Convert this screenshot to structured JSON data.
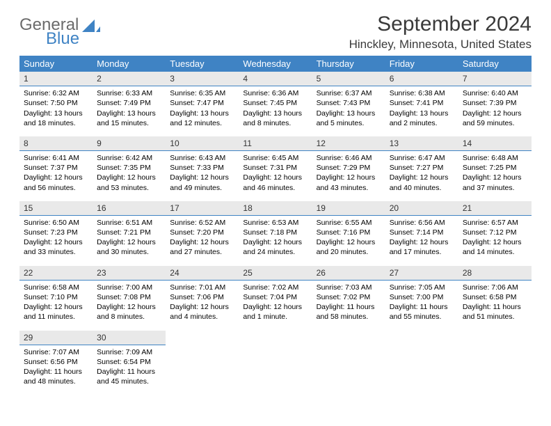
{
  "brand": {
    "word1": "General",
    "word2": "Blue"
  },
  "title": "September 2024",
  "location": "Hinckley, Minnesota, United States",
  "colors": {
    "header_bg": "#3f83c4",
    "header_fg": "#ffffff",
    "daynum_bg": "#e9e9e9",
    "daynum_border": "#3f83c4",
    "page_bg": "#ffffff",
    "text": "#000000",
    "logo_gray": "#6b6b6b",
    "logo_blue": "#3f83c4"
  },
  "weekdays": [
    "Sunday",
    "Monday",
    "Tuesday",
    "Wednesday",
    "Thursday",
    "Friday",
    "Saturday"
  ],
  "days": [
    {
      "n": "1",
      "sr": "6:32 AM",
      "ss": "7:50 PM",
      "dl": "13 hours and 18 minutes."
    },
    {
      "n": "2",
      "sr": "6:33 AM",
      "ss": "7:49 PM",
      "dl": "13 hours and 15 minutes."
    },
    {
      "n": "3",
      "sr": "6:35 AM",
      "ss": "7:47 PM",
      "dl": "13 hours and 12 minutes."
    },
    {
      "n": "4",
      "sr": "6:36 AM",
      "ss": "7:45 PM",
      "dl": "13 hours and 8 minutes."
    },
    {
      "n": "5",
      "sr": "6:37 AM",
      "ss": "7:43 PM",
      "dl": "13 hours and 5 minutes."
    },
    {
      "n": "6",
      "sr": "6:38 AM",
      "ss": "7:41 PM",
      "dl": "13 hours and 2 minutes."
    },
    {
      "n": "7",
      "sr": "6:40 AM",
      "ss": "7:39 PM",
      "dl": "12 hours and 59 minutes."
    },
    {
      "n": "8",
      "sr": "6:41 AM",
      "ss": "7:37 PM",
      "dl": "12 hours and 56 minutes."
    },
    {
      "n": "9",
      "sr": "6:42 AM",
      "ss": "7:35 PM",
      "dl": "12 hours and 53 minutes."
    },
    {
      "n": "10",
      "sr": "6:43 AM",
      "ss": "7:33 PM",
      "dl": "12 hours and 49 minutes."
    },
    {
      "n": "11",
      "sr": "6:45 AM",
      "ss": "7:31 PM",
      "dl": "12 hours and 46 minutes."
    },
    {
      "n": "12",
      "sr": "6:46 AM",
      "ss": "7:29 PM",
      "dl": "12 hours and 43 minutes."
    },
    {
      "n": "13",
      "sr": "6:47 AM",
      "ss": "7:27 PM",
      "dl": "12 hours and 40 minutes."
    },
    {
      "n": "14",
      "sr": "6:48 AM",
      "ss": "7:25 PM",
      "dl": "12 hours and 37 minutes."
    },
    {
      "n": "15",
      "sr": "6:50 AM",
      "ss": "7:23 PM",
      "dl": "12 hours and 33 minutes."
    },
    {
      "n": "16",
      "sr": "6:51 AM",
      "ss": "7:21 PM",
      "dl": "12 hours and 30 minutes."
    },
    {
      "n": "17",
      "sr": "6:52 AM",
      "ss": "7:20 PM",
      "dl": "12 hours and 27 minutes."
    },
    {
      "n": "18",
      "sr": "6:53 AM",
      "ss": "7:18 PM",
      "dl": "12 hours and 24 minutes."
    },
    {
      "n": "19",
      "sr": "6:55 AM",
      "ss": "7:16 PM",
      "dl": "12 hours and 20 minutes."
    },
    {
      "n": "20",
      "sr": "6:56 AM",
      "ss": "7:14 PM",
      "dl": "12 hours and 17 minutes."
    },
    {
      "n": "21",
      "sr": "6:57 AM",
      "ss": "7:12 PM",
      "dl": "12 hours and 14 minutes."
    },
    {
      "n": "22",
      "sr": "6:58 AM",
      "ss": "7:10 PM",
      "dl": "12 hours and 11 minutes."
    },
    {
      "n": "23",
      "sr": "7:00 AM",
      "ss": "7:08 PM",
      "dl": "12 hours and 8 minutes."
    },
    {
      "n": "24",
      "sr": "7:01 AM",
      "ss": "7:06 PM",
      "dl": "12 hours and 4 minutes."
    },
    {
      "n": "25",
      "sr": "7:02 AM",
      "ss": "7:04 PM",
      "dl": "12 hours and 1 minute."
    },
    {
      "n": "26",
      "sr": "7:03 AM",
      "ss": "7:02 PM",
      "dl": "11 hours and 58 minutes."
    },
    {
      "n": "27",
      "sr": "7:05 AM",
      "ss": "7:00 PM",
      "dl": "11 hours and 55 minutes."
    },
    {
      "n": "28",
      "sr": "7:06 AM",
      "ss": "6:58 PM",
      "dl": "11 hours and 51 minutes."
    },
    {
      "n": "29",
      "sr": "7:07 AM",
      "ss": "6:56 PM",
      "dl": "11 hours and 48 minutes."
    },
    {
      "n": "30",
      "sr": "7:09 AM",
      "ss": "6:54 PM",
      "dl": "11 hours and 45 minutes."
    }
  ],
  "labels": {
    "sunrise": "Sunrise:",
    "sunset": "Sunset:",
    "daylight": "Daylight:"
  }
}
